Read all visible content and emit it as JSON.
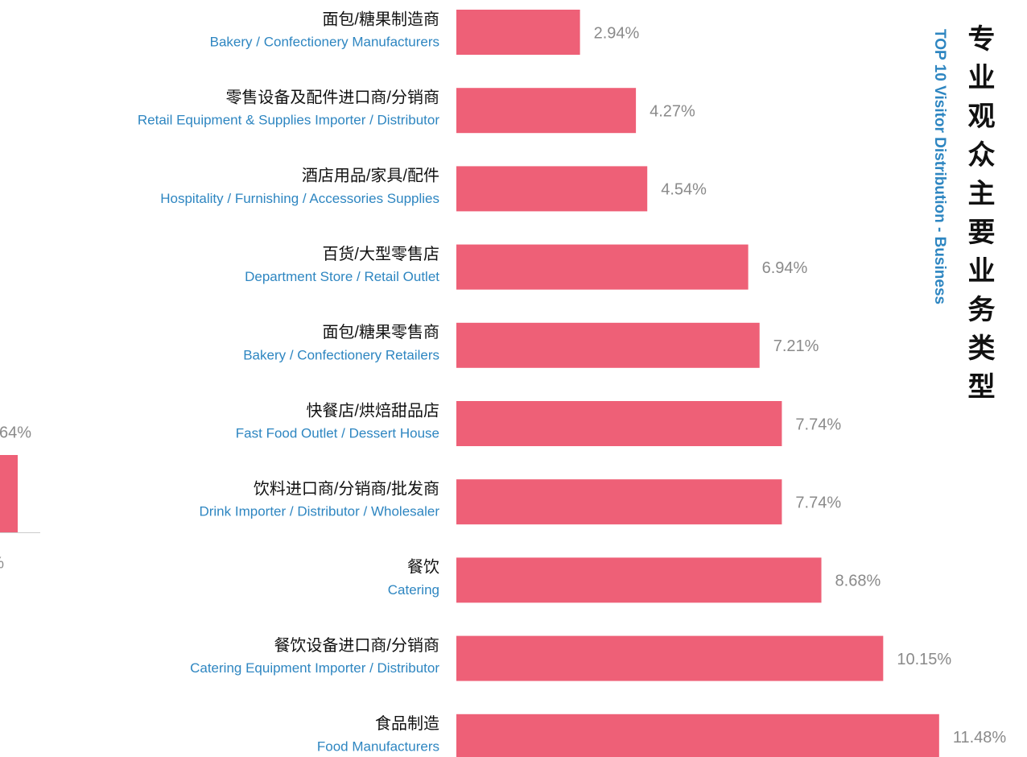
{
  "chart_data": {
    "type": "barh",
    "title": "专业观众主要业务类型",
    "subtitle": "TOP 10 Visitor Distribution - Business",
    "categories": [
      "面包/糖果制造商",
      "零售设备及配件进口商/分销商",
      "酒店用品/家具/配件",
      "百货/大型零售店",
      "面包/糖果零售商",
      "快餐店/烘焙甜品店",
      "饮料进口商/分销商/批发商",
      "餐饮",
      "餐饮设备进口商/分销商",
      "食品制造"
    ],
    "category_subtitles": [
      "Bakery / Confectionery Manufacturers",
      "Retail Equipment & Supplies Importer / Distributor",
      "Hospitality / Furnishing / Accessories Supplies",
      "Department Store / Retail Outlet",
      "Bakery / Confectionery Retailers",
      "Fast Food Outlet / Dessert House",
      "Drink Importer / Distributor / Wholesaler",
      "Catering",
      "Catering Equipment Importer / Distributor",
      "Food Manufacturers"
    ],
    "values": [
      2.94,
      4.27,
      4.54,
      6.94,
      7.21,
      7.74,
      7.74,
      8.68,
      10.15,
      11.48
    ],
    "value_labels": [
      "2.94%",
      "4.27%",
      "4.54%",
      "6.94%",
      "7.21%",
      "7.74%",
      "7.74%",
      "8.68%",
      "10.15%",
      "11.48%"
    ],
    "color": "#ee6077",
    "xlim": [
      0,
      12
    ]
  },
  "partial_chart": {
    "value_label": "64%",
    "tick_label": "%",
    "color": "#ee6077"
  }
}
